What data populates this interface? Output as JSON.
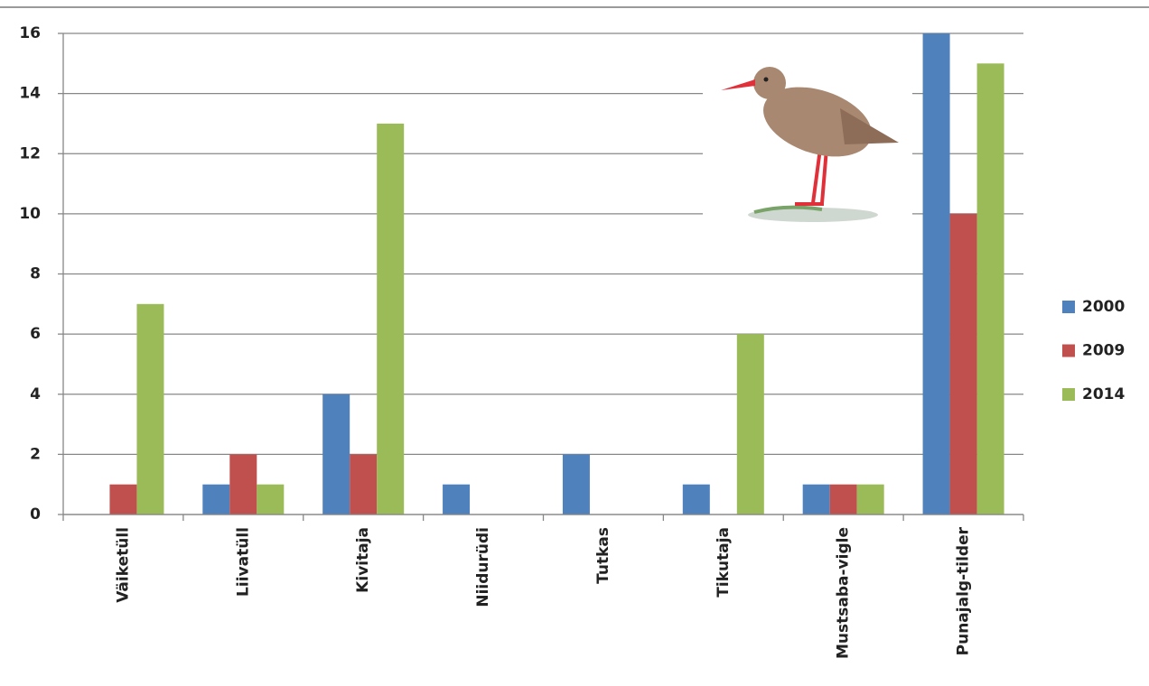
{
  "chart_data": {
    "type": "bar",
    "categories": [
      "Väiketüll",
      "Liivatüll",
      "Kivitaja",
      "Niidurüdi",
      "Tutkas",
      "Tikutaja",
      "Mustsaba-vigle",
      "Punajalg-tilder"
    ],
    "series": [
      {
        "name": "2000",
        "color": "#4f81bd",
        "values": [
          0,
          1,
          4,
          1,
          2,
          1,
          1,
          16
        ]
      },
      {
        "name": "2009",
        "color": "#c0504d",
        "values": [
          1,
          2,
          2,
          0,
          0,
          0,
          1,
          10
        ]
      },
      {
        "name": "2014",
        "color": "#9bbb59",
        "values": [
          7,
          1,
          13,
          0,
          0,
          6,
          1,
          15
        ]
      }
    ],
    "ylim": [
      0,
      16
    ],
    "yticks": [
      0,
      2,
      4,
      6,
      8,
      10,
      12,
      14,
      16
    ],
    "grid": true,
    "legend": "right"
  }
}
